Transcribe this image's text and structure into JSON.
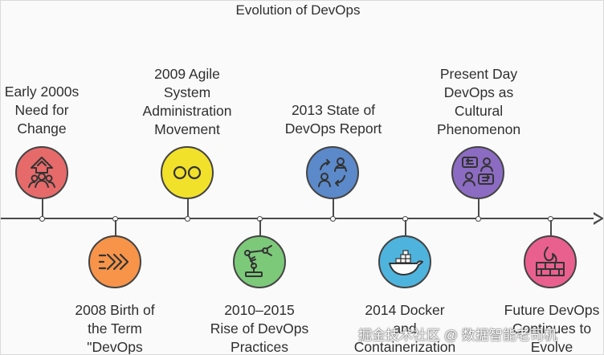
{
  "title": "Evolution of DevOps",
  "events": [
    {
      "lines": [
        "Early 2000s",
        "Need for",
        "Change"
      ],
      "color": "#e66a6a",
      "icon": "people-growth-icon"
    },
    {
      "lines": [
        "2008 Birth of",
        "the Term",
        "\"DevOps"
      ],
      "color": "#f7944a",
      "icon": "chevrons-icon"
    },
    {
      "lines": [
        "2009 Agile",
        "System",
        "Administration",
        "Movement"
      ],
      "color": "#f2e12a",
      "icon": "two-circles-icon"
    },
    {
      "lines": [
        "2010–2015",
        "Rise of DevOps",
        "Practices"
      ],
      "color": "#7dc97a",
      "icon": "robot-arm-icon"
    },
    {
      "lines": [
        "2013 State of",
        "DevOps Report"
      ],
      "color": "#5b89c9",
      "icon": "collaboration-icon"
    },
    {
      "lines": [
        "2014 Docker",
        "and",
        "Containerization"
      ],
      "color": "#4fb4dd",
      "icon": "docker-whale-icon"
    },
    {
      "lines": [
        "Present Day",
        "DevOps as",
        "Cultural",
        "Phenomenon"
      ],
      "color": "#8c6cc2",
      "icon": "conversation-icon"
    },
    {
      "lines": [
        "Future DevOps",
        "Continues to",
        "Evolve"
      ],
      "color": "#e9608e",
      "icon": "firewall-icon"
    }
  ],
  "watermark": "掘金技术社区 @ 数据智能老司机"
}
